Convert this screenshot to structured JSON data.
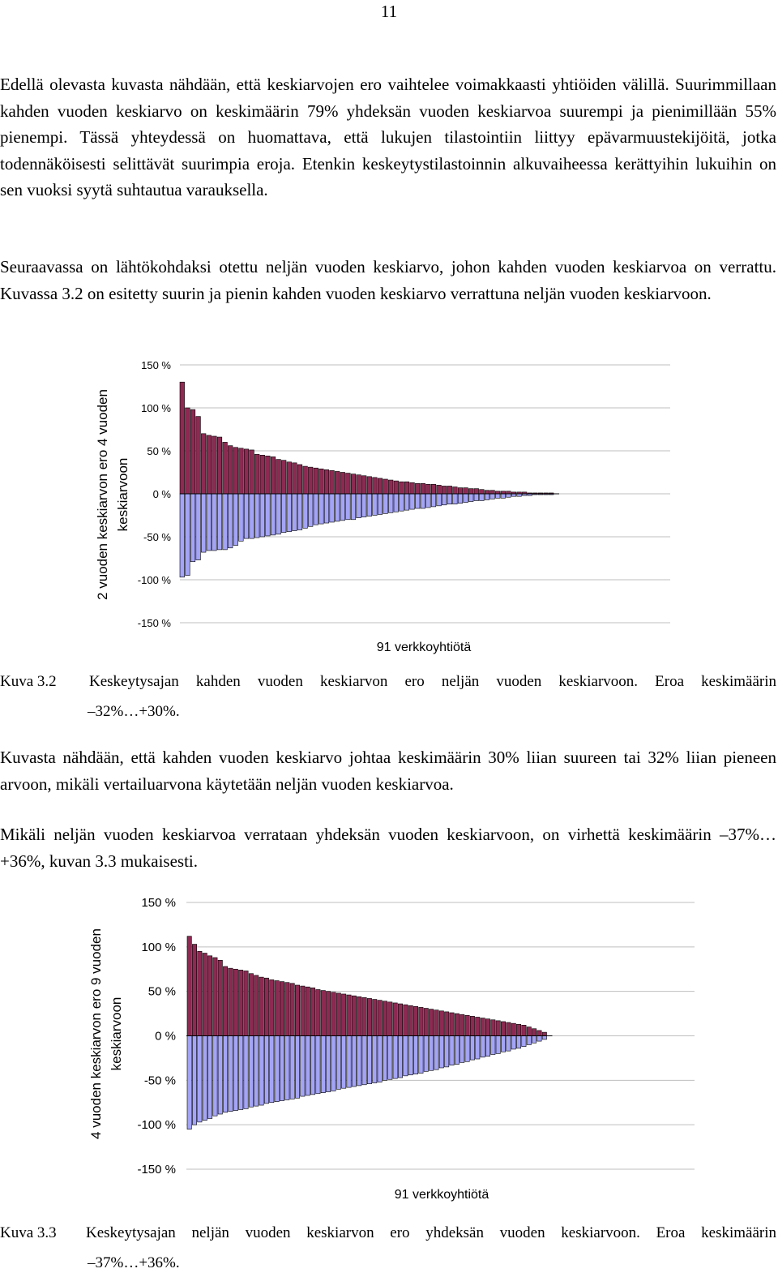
{
  "page_number": "11",
  "paragraphs": [
    "Edellä olevasta kuvasta nähdään, että keskiarvojen ero vaihtelee voimakkaasti yhtiöiden välillä. Suurimmillaan kahden vuoden keskiarvo on keskimäärin 79% yhdeksän vuoden keskiarvoa suurempi ja pienimillään 55% pienempi. Tässä yhteydessä on huomattava, että lukujen tilastointiin liittyy epävarmuustekijöitä, jotka todennäköisesti selittävät suurimpia eroja. Etenkin keskeytystilastoinnin alkuvaiheessa kerättyihin lukuihin on sen vuoksi syytä suhtautua varauksella.",
    "Seuraavassa on lähtökohdaksi otettu neljän vuoden keskiarvo, johon kahden vuoden keskiarvoa on verrattu. Kuvassa 3.2 on esitetty suurin ja pienin kahden vuoden keskiarvo verrattuna neljän vuoden keskiarvoon.",
    "Kuvasta nähdään, että kahden vuoden keskiarvo johtaa keskimäärin 30% liian suureen tai 32% liian pieneen arvoon, mikäli vertailuarvona käytetään neljän vuoden keskiarvoa.",
    "Mikäli neljän vuoden keskiarvoa verrataan yhdeksän vuoden keskiarvoon, on virhettä keskimäärin –37%…+36%, kuvan 3.3 mukaisesti."
  ],
  "figures": [
    {
      "caption_label": "Kuva 3.2",
      "caption_text": "Keskeytysajan kahden vuoden keskiarvon ero neljän vuoden keskiarvoon. Eroa keskimäärin",
      "caption_range": "–32%…+30%."
    },
    {
      "caption_label": "Kuva 3.3",
      "caption_text": "Keskeytysajan neljän vuoden keskiarvon ero yhdeksän vuoden keskiarvoon. Eroa keskimäärin",
      "caption_range": "–37%…+36%."
    }
  ],
  "colors": {
    "positive_bar": "#8c2a52",
    "negative_bar": "#a4a4f6",
    "gridline": "#bfbfbf"
  },
  "chart_data": [
    {
      "type": "bar",
      "title": "",
      "ylabel_line1": "2 vuoden keskiarvon ero 4 vuoden",
      "ylabel_line2": "keskiarvoon",
      "xlabel": "91 verkkoyhtiötä",
      "ylim": [
        -150,
        150
      ],
      "yticks": [
        150,
        100,
        50,
        0,
        -50,
        -100,
        -150
      ],
      "ytick_labels": [
        "150 %",
        "100 %",
        "50 %",
        "0 %",
        "-50 %",
        "-100 %",
        "-150 %"
      ],
      "grid": true,
      "series": [
        {
          "role": "positive",
          "values": [
            130,
            100,
            98,
            90,
            70,
            68,
            67,
            66,
            60,
            56,
            54,
            53,
            52,
            51,
            46,
            45,
            44,
            43,
            40,
            39,
            37,
            36,
            34,
            32,
            31,
            30,
            29,
            28,
            27,
            26,
            25,
            24,
            23,
            22,
            21,
            20,
            19,
            18,
            17,
            16,
            15,
            14,
            14,
            13,
            12,
            12,
            11,
            11,
            10,
            9,
            9,
            8,
            7,
            7,
            6,
            6,
            5,
            4,
            4,
            3,
            3,
            3,
            2,
            2,
            2,
            1,
            1,
            1,
            1,
            1
          ]
        },
        {
          "role": "negative",
          "values": [
            -97,
            -95,
            -79,
            -77,
            -68,
            -66,
            -66,
            -65,
            -65,
            -63,
            -60,
            -55,
            -52,
            -52,
            -51,
            -50,
            -49,
            -48,
            -47,
            -45,
            -44,
            -43,
            -42,
            -40,
            -38,
            -36,
            -35,
            -34,
            -33,
            -32,
            -31,
            -30,
            -30,
            -28,
            -27,
            -26,
            -25,
            -24,
            -23,
            -22,
            -21,
            -20,
            -19,
            -18,
            -17,
            -17,
            -16,
            -15,
            -14,
            -13,
            -12,
            -12,
            -11,
            -10,
            -9,
            -8,
            -8,
            -7,
            -6,
            -5,
            -5,
            -4,
            -3,
            -3,
            -2,
            -2,
            -1,
            -1,
            -1,
            -1
          ]
        }
      ]
    },
    {
      "type": "bar",
      "title": "",
      "ylabel_line1": "4 vuoden keskiarvon ero 9 vuoden",
      "ylabel_line2": "keskiarvoon",
      "xlabel": "91 verkkoyhtiötä",
      "ylim": [
        -150,
        150
      ],
      "yticks": [
        150,
        100,
        50,
        0,
        -50,
        -100,
        -150
      ],
      "ytick_labels": [
        "150 %",
        "100 %",
        "50 %",
        "0 %",
        "-50 %",
        "-100 %",
        "-150 %"
      ],
      "grid": true,
      "series": [
        {
          "role": "positive",
          "values": [
            112,
            103,
            95,
            93,
            90,
            88,
            85,
            78,
            76,
            75,
            74,
            73,
            70,
            68,
            66,
            65,
            63,
            62,
            61,
            60,
            59,
            57,
            56,
            55,
            54,
            52,
            51,
            50,
            49,
            48,
            47,
            46,
            45,
            44,
            43,
            42,
            41,
            40,
            39,
            38,
            37,
            36,
            35,
            34,
            33,
            32,
            31,
            30,
            29,
            28,
            27,
            26,
            25,
            24,
            23,
            22,
            21,
            20,
            19,
            18,
            17,
            16,
            15,
            14,
            13,
            12,
            10,
            8,
            6,
            4
          ]
        },
        {
          "role": "negative",
          "values": [
            -105,
            -100,
            -97,
            -95,
            -93,
            -90,
            -88,
            -86,
            -85,
            -84,
            -83,
            -82,
            -80,
            -79,
            -78,
            -76,
            -75,
            -74,
            -73,
            -72,
            -71,
            -70,
            -68,
            -67,
            -66,
            -65,
            -64,
            -63,
            -62,
            -60,
            -59,
            -58,
            -57,
            -56,
            -55,
            -54,
            -53,
            -52,
            -50,
            -49,
            -48,
            -47,
            -45,
            -44,
            -43,
            -42,
            -40,
            -39,
            -38,
            -36,
            -35,
            -33,
            -32,
            -30,
            -29,
            -27,
            -26,
            -24,
            -23,
            -21,
            -20,
            -18,
            -17,
            -15,
            -14,
            -12,
            -10,
            -8,
            -6,
            -4
          ]
        }
      ]
    }
  ]
}
